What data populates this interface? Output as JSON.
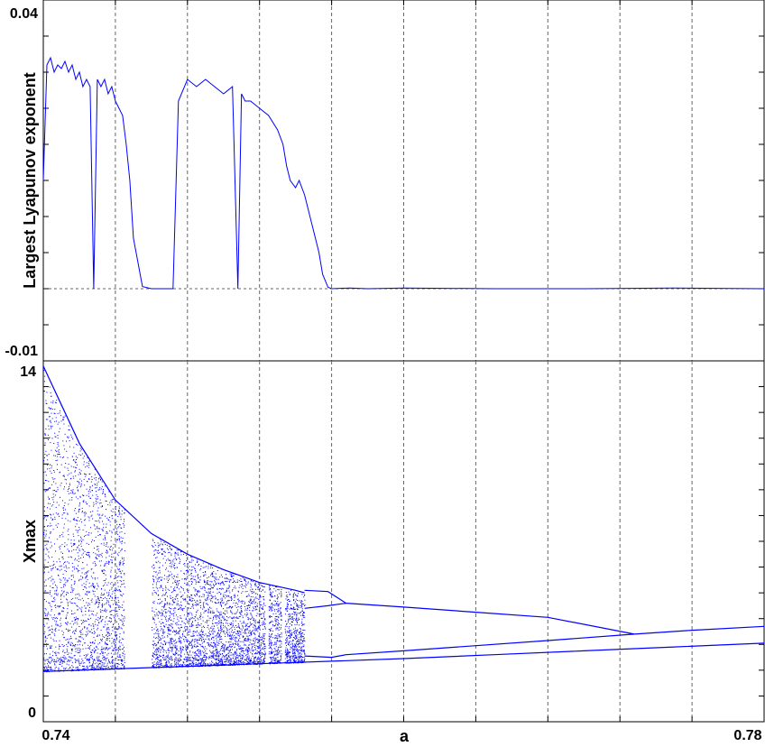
{
  "colors": {
    "series": "#0000ff",
    "frame": "#000000",
    "grid": "#666666",
    "background": "#ffffff"
  },
  "chart_data": [
    {
      "type": "line",
      "panel": "top",
      "title": "",
      "xlabel": "",
      "ylabel": "Largest Lyapunov exponent",
      "xlim": [
        0.74,
        0.78
      ],
      "ylim": [
        -0.01,
        0.04
      ],
      "y_tick_labels": [
        "0.04",
        "-0.01"
      ],
      "x_gridlines": [
        0.744,
        0.748,
        0.752,
        0.756,
        0.76,
        0.764,
        0.768,
        0.772,
        0.776
      ],
      "zero_reference_line": 0,
      "series": [
        {
          "x": [
            0.74,
            0.7402,
            0.7404,
            0.7406,
            0.7408,
            0.741,
            0.7412,
            0.7414,
            0.7416,
            0.7418,
            0.742,
            0.7422,
            0.7424,
            0.7426,
            0.7428,
            0.743,
            0.7432,
            0.7434,
            0.7436,
            0.7438,
            0.744,
            0.7442,
            0.7444,
            0.7446,
            0.7448,
            0.745,
            0.7455,
            0.746,
            0.7465,
            0.7468,
            0.747,
            0.7472,
            0.7475,
            0.748,
            0.7485,
            0.749,
            0.7495,
            0.75,
            0.7505,
            0.7508,
            0.751,
            0.7512,
            0.7515,
            0.752,
            0.7525,
            0.753,
            0.7533,
            0.7535,
            0.7537,
            0.754,
            0.7542,
            0.7545,
            0.7548,
            0.755,
            0.7553,
            0.7555,
            0.7558,
            0.756,
            0.757,
            0.758,
            0.76,
            0.765,
            0.77,
            0.775,
            0.78
          ],
          "y": [
            0.015,
            0.031,
            0.032,
            0.03,
            0.031,
            0.0305,
            0.0315,
            0.03,
            0.031,
            0.029,
            0.03,
            0.028,
            0.029,
            0.028,
            0.0,
            0.029,
            0.028,
            0.029,
            0.027,
            0.028,
            0.026,
            0.025,
            0.024,
            0.02,
            0.015,
            0.007,
            0.0003,
            0.0,
            0.0,
            0.0,
            0.0,
            0.0,
            0.026,
            0.029,
            0.028,
            0.029,
            0.028,
            0.027,
            0.028,
            0.0,
            0.027,
            0.026,
            0.026,
            0.025,
            0.024,
            0.022,
            0.02,
            0.017,
            0.015,
            0.014,
            0.015,
            0.013,
            0.01,
            0.008,
            0.005,
            0.002,
            0.0002,
            0.0,
            0.0001,
            0.0,
            0.0001,
            0.0,
            0.0,
            0.0001,
            0.0
          ]
        }
      ]
    },
    {
      "type": "scatter",
      "panel": "bottom",
      "title": "",
      "xlabel": "a",
      "ylabel": "Xmax",
      "xlim": [
        0.74,
        0.78
      ],
      "ylim": [
        0,
        14
      ],
      "x_tick_labels": [
        "0.74",
        "0.78"
      ],
      "y_tick_labels": [
        "14",
        "0"
      ],
      "x_gridlines": [
        0.744,
        0.748,
        0.752,
        0.756,
        0.76,
        0.764,
        0.768,
        0.772,
        0.776
      ],
      "chaotic_region": [
        0.74,
        0.7545
      ],
      "periodic_windows": [
        {
          "from": 0.7445,
          "to": 0.746
        },
        {
          "from": 0.7523,
          "to": 0.7525
        },
        {
          "from": 0.7532,
          "to": 0.7534
        }
      ],
      "envelopes": {
        "upper": {
          "x": [
            0.74,
            0.742,
            0.744,
            0.746,
            0.748,
            0.75,
            0.752,
            0.754,
            0.7545
          ],
          "y": [
            13.8,
            10.8,
            8.6,
            7.3,
            6.5,
            5.9,
            5.4,
            5.1,
            5.0
          ]
        },
        "lower": {
          "x": [
            0.74,
            0.742,
            0.744,
            0.746,
            0.748,
            0.75,
            0.752,
            0.754,
            0.756,
            0.76,
            0.765,
            0.77,
            0.775,
            0.78
          ],
          "y": [
            1.95,
            2.0,
            2.05,
            2.1,
            2.15,
            2.2,
            2.25,
            2.3,
            2.35,
            2.45,
            2.6,
            2.75,
            2.9,
            3.05
          ]
        }
      },
      "bifurcation_branches": [
        {
          "x": [
            0.7545,
            0.7558,
            0.7568,
            0.76,
            0.764,
            0.768,
            0.7728
          ],
          "y": [
            5.1,
            5.05,
            4.6,
            4.45,
            4.25,
            4.05,
            3.4
          ]
        },
        {
          "x": [
            0.7545,
            0.7558,
            0.7568
          ],
          "y": [
            4.4,
            4.5,
            4.6
          ]
        },
        {
          "x": [
            0.7545,
            0.756,
            0.7568,
            0.76,
            0.764,
            0.768,
            0.7728
          ],
          "y": [
            2.55,
            2.5,
            2.6,
            2.75,
            2.95,
            3.15,
            3.4
          ]
        },
        {
          "x": [
            0.7728,
            0.776,
            0.78
          ],
          "y": [
            3.4,
            3.55,
            3.7
          ]
        }
      ]
    }
  ]
}
